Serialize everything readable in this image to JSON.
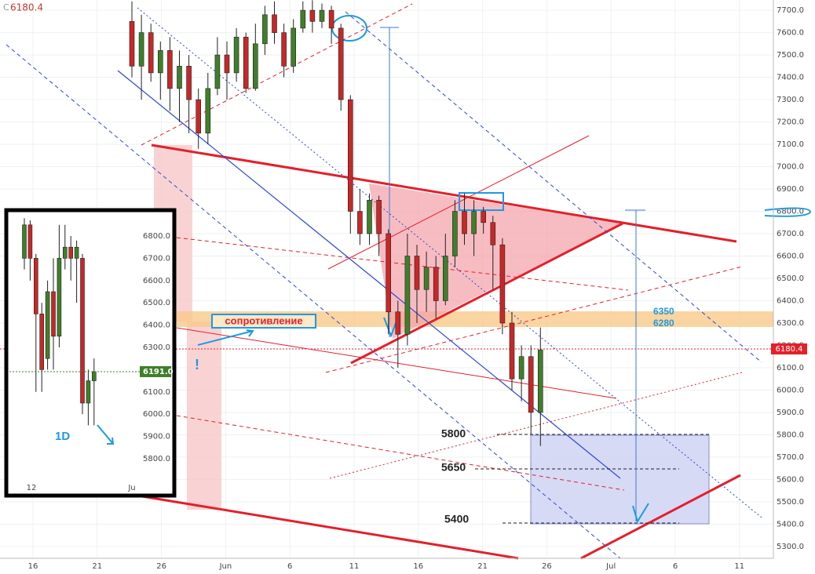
{
  "chart_data": [
    {
      "type": "candlestick",
      "legend_prefix": "C",
      "legend_close": 6180.4,
      "open": [
        7650,
        7450,
        7600,
        7420,
        7520,
        7350,
        7450,
        7300,
        7150,
        7350,
        7500,
        7420,
        7580,
        7350,
        7550,
        7680,
        7600,
        7450,
        7620,
        7700,
        7650,
        7700,
        7620,
        7300,
        6800,
        6700,
        6850,
        6700,
        6350,
        6250,
        6600,
        6450,
        6550,
        6400,
        6600,
        6800,
        6700,
        6800,
        6750,
        6650,
        6300,
        6050,
        6150,
        5900
      ],
      "high": [
        7740,
        7680,
        7640,
        7560,
        7580,
        7520,
        7500,
        7350,
        7420,
        7580,
        7560,
        7620,
        7600,
        7640,
        7720,
        7740,
        7640,
        7660,
        7740,
        7745,
        7730,
        7720,
        7640,
        7320,
        6900,
        6880,
        6870,
        6720,
        6400,
        6700,
        6650,
        6620,
        6600,
        6700,
        6850,
        6880,
        6850,
        6820,
        6780,
        6680,
        6350,
        6200,
        6200,
        6280
      ],
      "low": [
        7400,
        7300,
        7380,
        7300,
        7250,
        7200,
        7150,
        7080,
        7100,
        7320,
        7300,
        7380,
        7330,
        7340,
        7500,
        7550,
        7400,
        7420,
        7600,
        7600,
        7620,
        7550,
        7250,
        6700,
        6650,
        6650,
        6600,
        6250,
        6100,
        6200,
        6300,
        6350,
        6320,
        6380,
        6550,
        6650,
        6600,
        6700,
        6450,
        6250,
        6000,
        5950,
        5800,
        5750
      ],
      "close": [
        7450,
        7600,
        7420,
        7520,
        7350,
        7450,
        7300,
        7150,
        7350,
        7500,
        7420,
        7580,
        7350,
        7550,
        7680,
        7600,
        7450,
        7620,
        7700,
        7650,
        7700,
        7620,
        7300,
        6800,
        6700,
        6850,
        6700,
        6350,
        6250,
        6600,
        6450,
        6550,
        6400,
        6600,
        6800,
        6700,
        6800,
        6750,
        6650,
        6300,
        6050,
        6150,
        5900,
        6180
      ],
      "last_price": 6180.4,
      "ylim": [
        5247,
        7746
      ],
      "yticks": [
        {
          "value": 5300,
          "label": "5300.0"
        },
        {
          "value": 5400,
          "label": "5400.0"
        },
        {
          "value": 5500,
          "label": "5500.0"
        },
        {
          "value": 5600,
          "label": "5600.0"
        },
        {
          "value": 5700,
          "label": "5700.0"
        },
        {
          "value": 5800,
          "label": "5800.0"
        },
        {
          "value": 5900,
          "label": "5900.0"
        },
        {
          "value": 6000,
          "label": "6000.0"
        },
        {
          "value": 6100,
          "label": "6100.0"
        },
        {
          "value": 6200,
          "label": "6200.0"
        },
        {
          "value": 6300,
          "label": "6300.0"
        },
        {
          "value": 6400,
          "label": "6400.0"
        },
        {
          "value": 6500,
          "label": "6500.0"
        },
        {
          "value": 6600,
          "label": "6600.0"
        },
        {
          "value": 6700,
          "label": "6700.0"
        },
        {
          "value": 6800,
          "label": "6800.0"
        },
        {
          "value": 6900,
          "label": "6900.0"
        },
        {
          "value": 7000,
          "label": "7000.0"
        },
        {
          "value": 7100,
          "label": "7100.0"
        },
        {
          "value": 7200,
          "label": "7200.0"
        },
        {
          "value": 7300,
          "label": "7300.0"
        },
        {
          "value": 7400,
          "label": "7400.0"
        },
        {
          "value": 7500,
          "label": "7500.0"
        },
        {
          "value": 7600,
          "label": "7600.0"
        },
        {
          "value": 7700,
          "label": "7700.0"
        }
      ],
      "xtick_labels": [
        "16",
        "21",
        "26",
        "Jun",
        "6",
        "11",
        "16",
        "21",
        "26",
        "Jul",
        "6",
        "11"
      ],
      "annotations": [
        "сопротивление",
        "6350",
        "6280",
        "5800",
        "5650",
        "5400",
        "!"
      ],
      "grid": true
    },
    {
      "type": "candlestick",
      "open": [
        6700,
        6850,
        6700,
        6450,
        6250,
        6550,
        6350,
        6700,
        6750,
        6700,
        6700,
        6050,
        6150
      ],
      "high": [
        6880,
        6870,
        6720,
        6500,
        6600,
        6700,
        6850,
        6850,
        6800,
        6780,
        6720,
        6200,
        6250
      ],
      "low": [
        6650,
        6600,
        6100,
        6100,
        6200,
        6200,
        6300,
        6650,
        6600,
        6500,
        6000,
        5950,
        5950
      ],
      "close": [
        6850,
        6700,
        6450,
        6200,
        6550,
        6350,
        6700,
        6750,
        6700,
        6750,
        6050,
        6150,
        6191
      ],
      "last_price": {
        "value": 6191,
        "label": "6191.0"
      },
      "ylim": [
        5705,
        6902
      ],
      "yticks": [
        {
          "value": 5800,
          "label": "5800.0"
        },
        {
          "value": 5900,
          "label": "5900.0"
        },
        {
          "value": 6000,
          "label": "6000.0"
        },
        {
          "value": 6100,
          "label": "6100.0"
        },
        {
          "value": 6200,
          "label": "6200.0"
        },
        {
          "value": 6300,
          "label": "6300.0"
        },
        {
          "value": 6400,
          "label": "6400.0"
        },
        {
          "value": 6500,
          "label": "6500.0"
        },
        {
          "value": 6600,
          "label": "6600.0"
        },
        {
          "value": 6700,
          "label": "6700.0"
        },
        {
          "value": 6800,
          "label": "6800.0"
        }
      ],
      "xtick_labels": [
        "12",
        "Ju"
      ],
      "annotations": [
        "1D"
      ]
    }
  ]
}
